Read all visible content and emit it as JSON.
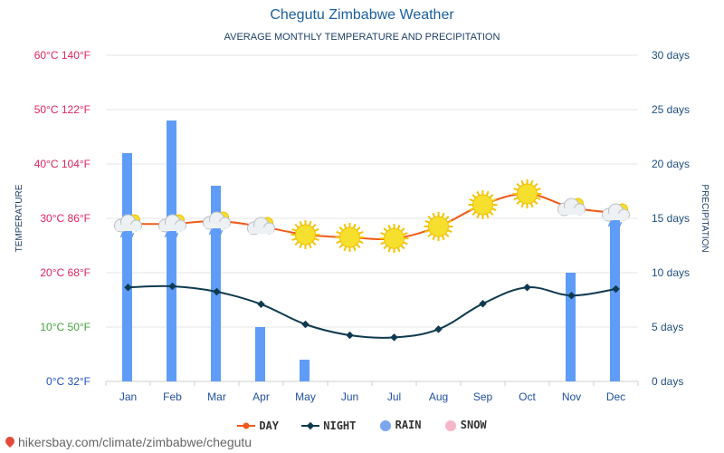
{
  "header": {
    "title": "Chegutu Zimbabwe Weather",
    "subtitle": "AVERAGE MONTHLY TEMPERATURE AND PRECIPITATION"
  },
  "axes": {
    "left_label": "TEMPERATURE",
    "right_label": "PRECIPITATION",
    "left_ticks": [
      {
        "celsius": "0°C",
        "fahrenheit": "32°F",
        "color": "#1f4fbf"
      },
      {
        "celsius": "10°C",
        "fahrenheit": "50°F",
        "color": "#43a33b"
      },
      {
        "celsius": "20°C",
        "fahrenheit": "68°F",
        "color": "#e0245e"
      },
      {
        "celsius": "30°C",
        "fahrenheit": "86°F",
        "color": "#e0245e"
      },
      {
        "celsius": "40°C",
        "fahrenheit": "104°F",
        "color": "#e0245e"
      },
      {
        "celsius": "50°C",
        "fahrenheit": "122°F",
        "color": "#e0245e"
      },
      {
        "celsius": "60°C",
        "fahrenheit": "140°F",
        "color": "#e0245e"
      }
    ],
    "right_ticks": [
      "0 days",
      "5 days",
      "10 days",
      "15 days",
      "20 days",
      "25 days",
      "30 days"
    ],
    "right_tick_color": "#1f4f7f"
  },
  "legend": {
    "day": "DAY",
    "night": "NIGHT",
    "rain": "RAIN",
    "snow": "SNOW"
  },
  "footer": {
    "url": "hikersbay.com/climate/zimbabwe/chegutu"
  },
  "colors": {
    "day": "#f05a1a",
    "night": "#0e3a4f",
    "rain": "#5f9cf7",
    "snow": "#f7b6c8",
    "grid": "#e6e6e6"
  },
  "chart_data": {
    "type": "bar",
    "categories": [
      "Jan",
      "Feb",
      "Mar",
      "Apr",
      "May",
      "Jun",
      "Jul",
      "Aug",
      "Sep",
      "Oct",
      "Nov",
      "Dec"
    ],
    "series": [
      {
        "name": "DAY",
        "type": "line",
        "axis": "temperature_c",
        "values": [
          29,
          29,
          29.5,
          28.5,
          27,
          26.5,
          26.3,
          28.5,
          32.5,
          34.5,
          32,
          31
        ]
      },
      {
        "name": "NIGHT",
        "type": "line",
        "axis": "temperature_c",
        "values": [
          17.3,
          17.5,
          16.5,
          14.2,
          10.5,
          8.5,
          8.1,
          9.6,
          14.3,
          17.3,
          15.8,
          17
        ]
      },
      {
        "name": "RAIN",
        "type": "bar",
        "axis": "days",
        "values": [
          21,
          24,
          18,
          5,
          2,
          0,
          0,
          0,
          0,
          0,
          10,
          15
        ]
      },
      {
        "name": "SNOW",
        "type": "bar",
        "axis": "days",
        "values": [
          0,
          0,
          0,
          0,
          0,
          0,
          0,
          0,
          0,
          0,
          0,
          0
        ]
      }
    ],
    "weather_icons": [
      "cloud-rain",
      "cloud-rain",
      "cloud-rain",
      "partly-cloudy",
      "sun",
      "sun",
      "sun",
      "sun",
      "sun",
      "sun",
      "partly-cloudy",
      "cloud-rain"
    ],
    "ylim_temperature_c": [
      0,
      60
    ],
    "ylim_days": [
      0,
      30
    ],
    "grid": true,
    "legend_position": "bottom-center"
  }
}
